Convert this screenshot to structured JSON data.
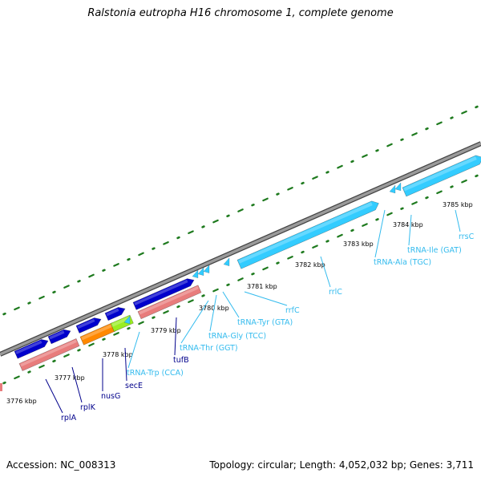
{
  "title": "Ralstonia eutropha H16 chromosome 1, complete genome",
  "footer": {
    "accession": "Accession: NC_008313",
    "summary": "Topology: circular; Length: 4,052,032 bp; Genes: 3,711"
  },
  "colors": {
    "backbone": "#7f7f7f",
    "tick": "#1e7a1e",
    "protein_gene": "#0000cc",
    "rna_gene": "#33ccff",
    "cds_pink": "#e87c7c",
    "cds_orange": "#ff8800",
    "cds_green": "#99ee22",
    "protein_label": "#00008b",
    "rna_label": "#33bbee"
  },
  "kbp_labels": [
    "3776 kbp",
    "3777 kbp",
    "3778 kbp",
    "3779 kbp",
    "3780 kbp",
    "3781 kbp",
    "3782 kbp",
    "3783 kbp",
    "3784 kbp",
    "3785 kbp"
  ],
  "gene_labels": [
    {
      "text": "rplA",
      "type": "protein"
    },
    {
      "text": "rplK",
      "type": "protein"
    },
    {
      "text": "nusG",
      "type": "protein"
    },
    {
      "text": "secE",
      "type": "protein"
    },
    {
      "text": "tRNA-Trp (CCA)",
      "type": "rna"
    },
    {
      "text": "tufB",
      "type": "protein"
    },
    {
      "text": "tRNA-Thr (GGT)",
      "type": "rna"
    },
    {
      "text": "tRNA-Gly (TCC)",
      "type": "rna"
    },
    {
      "text": "tRNA-Tyr (GTA)",
      "type": "rna"
    },
    {
      "text": "rrfC",
      "type": "rna"
    },
    {
      "text": "rrlC",
      "type": "rna"
    },
    {
      "text": "tRNA-Ala (TGC)",
      "type": "rna"
    },
    {
      "text": "tRNA-Ile (GAT)",
      "type": "rna"
    },
    {
      "text": "rrsC",
      "type": "rna"
    }
  ]
}
